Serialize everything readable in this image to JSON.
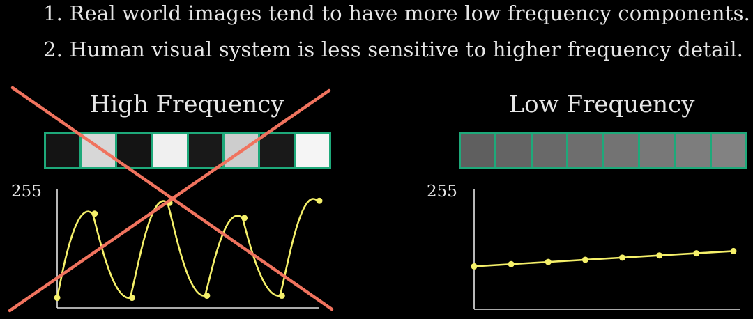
{
  "bullets": [
    {
      "number": "1.",
      "text": "Real world images tend to have more low frequency components."
    },
    {
      "number": "2.",
      "text": "Human visual system is less sensitive to higher frequency detail."
    }
  ],
  "panels": {
    "high": {
      "title": "High Frequency",
      "y_axis_label": "255",
      "pixel_values": [
        20,
        215,
        20,
        240,
        25,
        205,
        25,
        245
      ],
      "crossed_out": true,
      "cross_color": "#f0735e"
    },
    "low": {
      "title": "Low Frequency",
      "y_axis_label": "255",
      "pixel_values": [
        95,
        100,
        105,
        110,
        115,
        120,
        125,
        130
      ]
    }
  },
  "colors": {
    "background": "#000000",
    "text": "#e6e6e6",
    "strip_border": "#1ea97a",
    "curve": "#f5f06a",
    "point": "#f5f06a",
    "axis": "#e6e6e6"
  }
}
